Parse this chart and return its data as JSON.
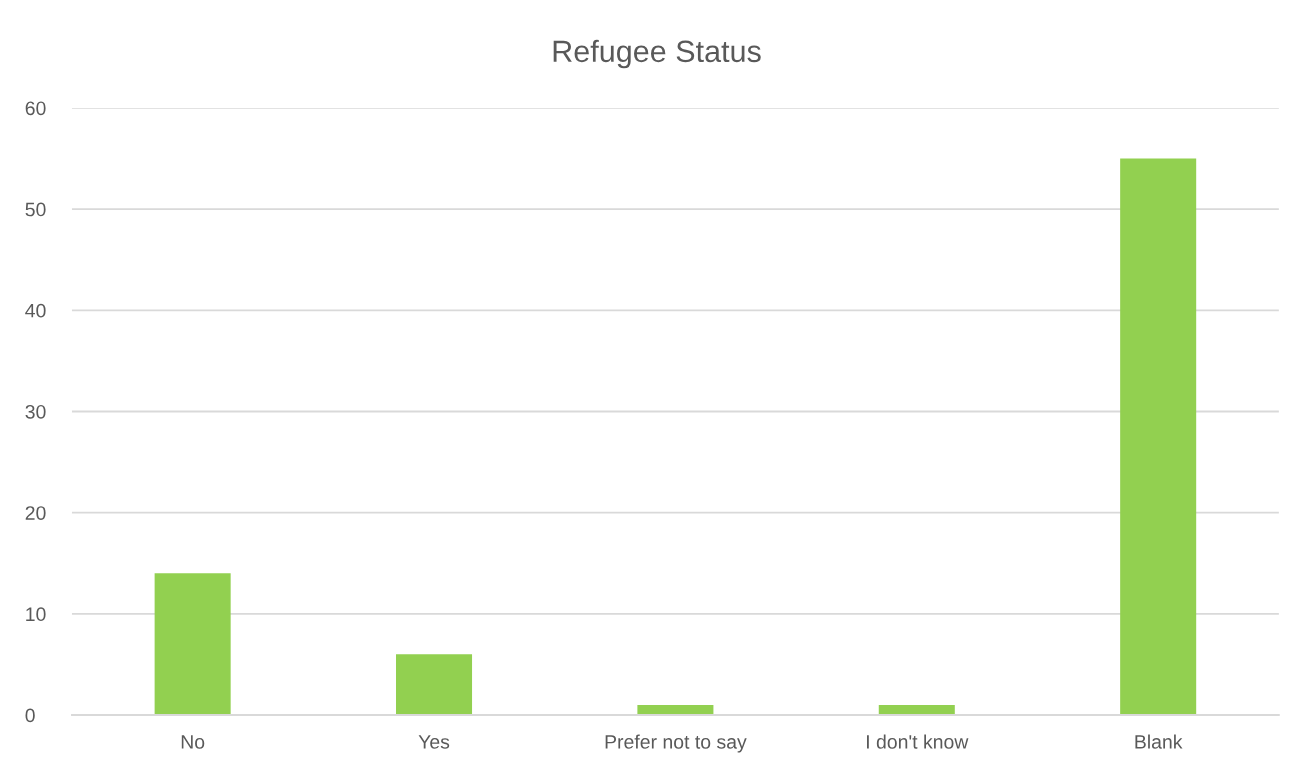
{
  "chart_data": {
    "type": "bar",
    "title": "Refugee Status",
    "categories": [
      "No",
      "Yes",
      "Prefer not to say",
      "I don't know",
      "Blank"
    ],
    "values": [
      14,
      6,
      1,
      1,
      55
    ],
    "color": "#92d050",
    "ylim": [
      0,
      60
    ],
    "yticks": [
      0,
      10,
      20,
      30,
      40,
      50,
      60
    ],
    "grid": "y"
  }
}
